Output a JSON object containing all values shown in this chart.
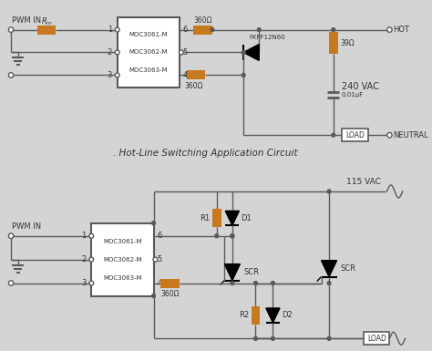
{
  "bg_color": "#d4d4d4",
  "line_color": "#5a5a5a",
  "comp_color": "#c8781e",
  "text_color": "#333333",
  "title": ". Hot-Line Switching Application Circuit",
  "pwm_in": "PWM IN",
  "moc1": "MOC3061-M",
  "moc2": "MOC3062-M",
  "moc3": "MOC3063-M",
  "r360": "360Ω",
  "r39": "39Ω",
  "cap": "0.01μF",
  "fkpf": "FKPF12N60",
  "vac240": "240 VAC",
  "vac115": "115 VAC",
  "hot": "HOT",
  "neutral": "NEUTRAL",
  "load": "LOAD",
  "r1": "R1",
  "r2": "R2",
  "d1": "D1",
  "d2": "D2",
  "scr": "SCR"
}
